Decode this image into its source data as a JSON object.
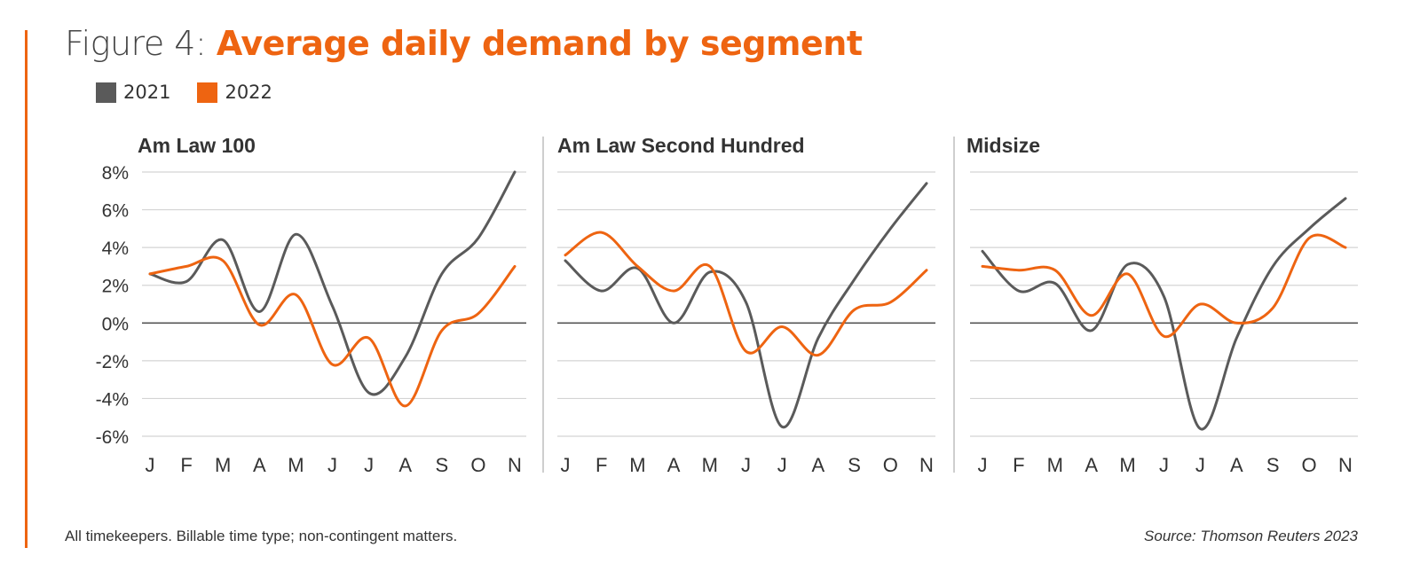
{
  "title": {
    "prefix": "Figure 4:",
    "main": "Average daily demand by segment"
  },
  "legend": [
    {
      "label": "2021",
      "color": "#5a5a5a"
    },
    {
      "label": "2022",
      "color": "#ee6411"
    }
  ],
  "footnote": "All timekeepers. Billable time type; non-contingent matters.",
  "source": "Source: Thomson Reuters 2023",
  "chart_data": [
    {
      "type": "line",
      "title": "Am Law 100",
      "categories": [
        "J",
        "F",
        "M",
        "A",
        "M",
        "J",
        "J",
        "A",
        "S",
        "O",
        "N"
      ],
      "y_ticks": [
        "8%",
        "6%",
        "4%",
        "2%",
        "0%",
        "-2%",
        "-4%",
        "-6%"
      ],
      "ylim": [
        -6,
        8
      ],
      "grid": true,
      "series": [
        {
          "name": "2021",
          "color": "#5a5a5a",
          "values": [
            2.6,
            2.2,
            4.4,
            0.6,
            4.7,
            0.9,
            -3.7,
            -1.8,
            2.6,
            4.5,
            8.0
          ]
        },
        {
          "name": "2022",
          "color": "#ee6411",
          "values": [
            2.6,
            3.0,
            3.3,
            -0.1,
            1.5,
            -2.2,
            -0.8,
            -4.4,
            -0.4,
            0.5,
            3.0
          ]
        }
      ]
    },
    {
      "type": "line",
      "title": "Am Law Second Hundred",
      "categories": [
        "J",
        "F",
        "M",
        "A",
        "M",
        "J",
        "J",
        "A",
        "S",
        "O",
        "N"
      ],
      "ylim": [
        -6,
        8
      ],
      "grid": true,
      "series": [
        {
          "name": "2021",
          "color": "#5a5a5a",
          "values": [
            3.3,
            1.7,
            2.9,
            0.0,
            2.7,
            1.1,
            -5.5,
            -0.8,
            2.3,
            5.0,
            7.4
          ]
        },
        {
          "name": "2022",
          "color": "#ee6411",
          "values": [
            3.6,
            4.8,
            3.0,
            1.7,
            3.0,
            -1.5,
            -0.2,
            -1.7,
            0.7,
            1.1,
            2.8
          ]
        }
      ]
    },
    {
      "type": "line",
      "title": "Midsize",
      "categories": [
        "J",
        "F",
        "M",
        "A",
        "M",
        "J",
        "J",
        "A",
        "S",
        "O",
        "N"
      ],
      "ylim": [
        -6,
        8
      ],
      "grid": true,
      "series": [
        {
          "name": "2021",
          "color": "#5a5a5a",
          "values": [
            3.8,
            1.7,
            2.1,
            -0.4,
            3.1,
            1.4,
            -5.6,
            -0.8,
            3.0,
            5.0,
            6.6
          ]
        },
        {
          "name": "2022",
          "color": "#ee6411",
          "values": [
            3.0,
            2.8,
            2.8,
            0.4,
            2.6,
            -0.7,
            1.0,
            0.0,
            0.8,
            4.5,
            4.0
          ]
        }
      ]
    }
  ]
}
